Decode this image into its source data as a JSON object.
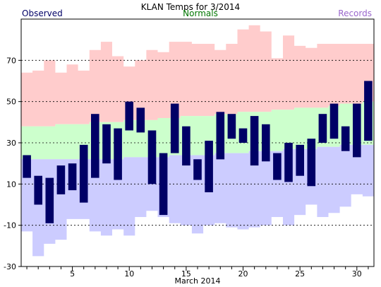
{
  "chart_data": {
    "type": "bar",
    "title": "KLAN Temps for 3/2014",
    "xlabel": "March 2014",
    "ylabel": "",
    "legend": {
      "observed": "Observed",
      "normals": "Normals",
      "records": "Records",
      "placement": "top"
    },
    "colors": {
      "observed": "#000066",
      "normals_band": "#ccffcc",
      "records_high_band": "#ffcccc",
      "records_low_band": "#ccccff",
      "observed_legend": "#000066",
      "normals_legend": "#007700",
      "records_legend": "#9966cc"
    },
    "xlim": [
      0.5,
      31.5
    ],
    "ylim": [
      -30,
      90
    ],
    "yticks": [
      -30,
      -10,
      10,
      30,
      50,
      70
    ],
    "xticks": [
      5,
      10,
      15,
      20,
      25,
      30
    ],
    "grid": "dashed horizontal at -10, 10, 30, 50, 70",
    "days": [
      1,
      2,
      3,
      4,
      5,
      6,
      7,
      8,
      9,
      10,
      11,
      12,
      13,
      14,
      15,
      16,
      17,
      18,
      19,
      20,
      21,
      22,
      23,
      24,
      25,
      26,
      27,
      28,
      29,
      30,
      31
    ],
    "observed_high": [
      24,
      14,
      13,
      19,
      20,
      29,
      44,
      39,
      37,
      50,
      47,
      36,
      25,
      49,
      38,
      22,
      31,
      45,
      44,
      37,
      43,
      39,
      25,
      30,
      29,
      32,
      44,
      49,
      38,
      49,
      60
    ],
    "observed_low": [
      13,
      0,
      -9,
      5,
      7,
      1,
      13,
      20,
      12,
      36,
      35,
      10,
      -5,
      25,
      19,
      12,
      6,
      22,
      32,
      30,
      19,
      21,
      12,
      11,
      14,
      9,
      30,
      32,
      26,
      23,
      31
    ],
    "normal_high": [
      38,
      38,
      38,
      39,
      39,
      39,
      40,
      40,
      40,
      41,
      41,
      41,
      42,
      42,
      43,
      43,
      43,
      44,
      44,
      45,
      45,
      45,
      46,
      46,
      47,
      47,
      47,
      48,
      49,
      49,
      50
    ],
    "normal_low": [
      22,
      22,
      22,
      22,
      22,
      22,
      22,
      22,
      22,
      23,
      23,
      23,
      23,
      24,
      24,
      24,
      24,
      25,
      25,
      25,
      26,
      26,
      26,
      27,
      27,
      27,
      28,
      28,
      29,
      29,
      29
    ],
    "record_high": [
      64,
      65,
      70,
      64,
      68,
      65,
      75,
      79,
      72,
      67,
      70,
      75,
      74,
      79,
      79,
      78,
      78,
      75,
      78,
      85,
      87,
      84,
      71,
      82,
      77,
      76,
      78,
      78,
      78,
      78,
      78
    ],
    "record_low": [
      -13,
      -25,
      -19,
      -17,
      -7,
      -7,
      -13,
      -15,
      -12,
      -15,
      -6,
      -3,
      -6,
      -9,
      -10,
      -14,
      -10,
      -9,
      -11,
      -12,
      -11,
      -10,
      -6,
      -10,
      -5,
      0,
      -6,
      -4,
      -1,
      5,
      4
    ]
  }
}
